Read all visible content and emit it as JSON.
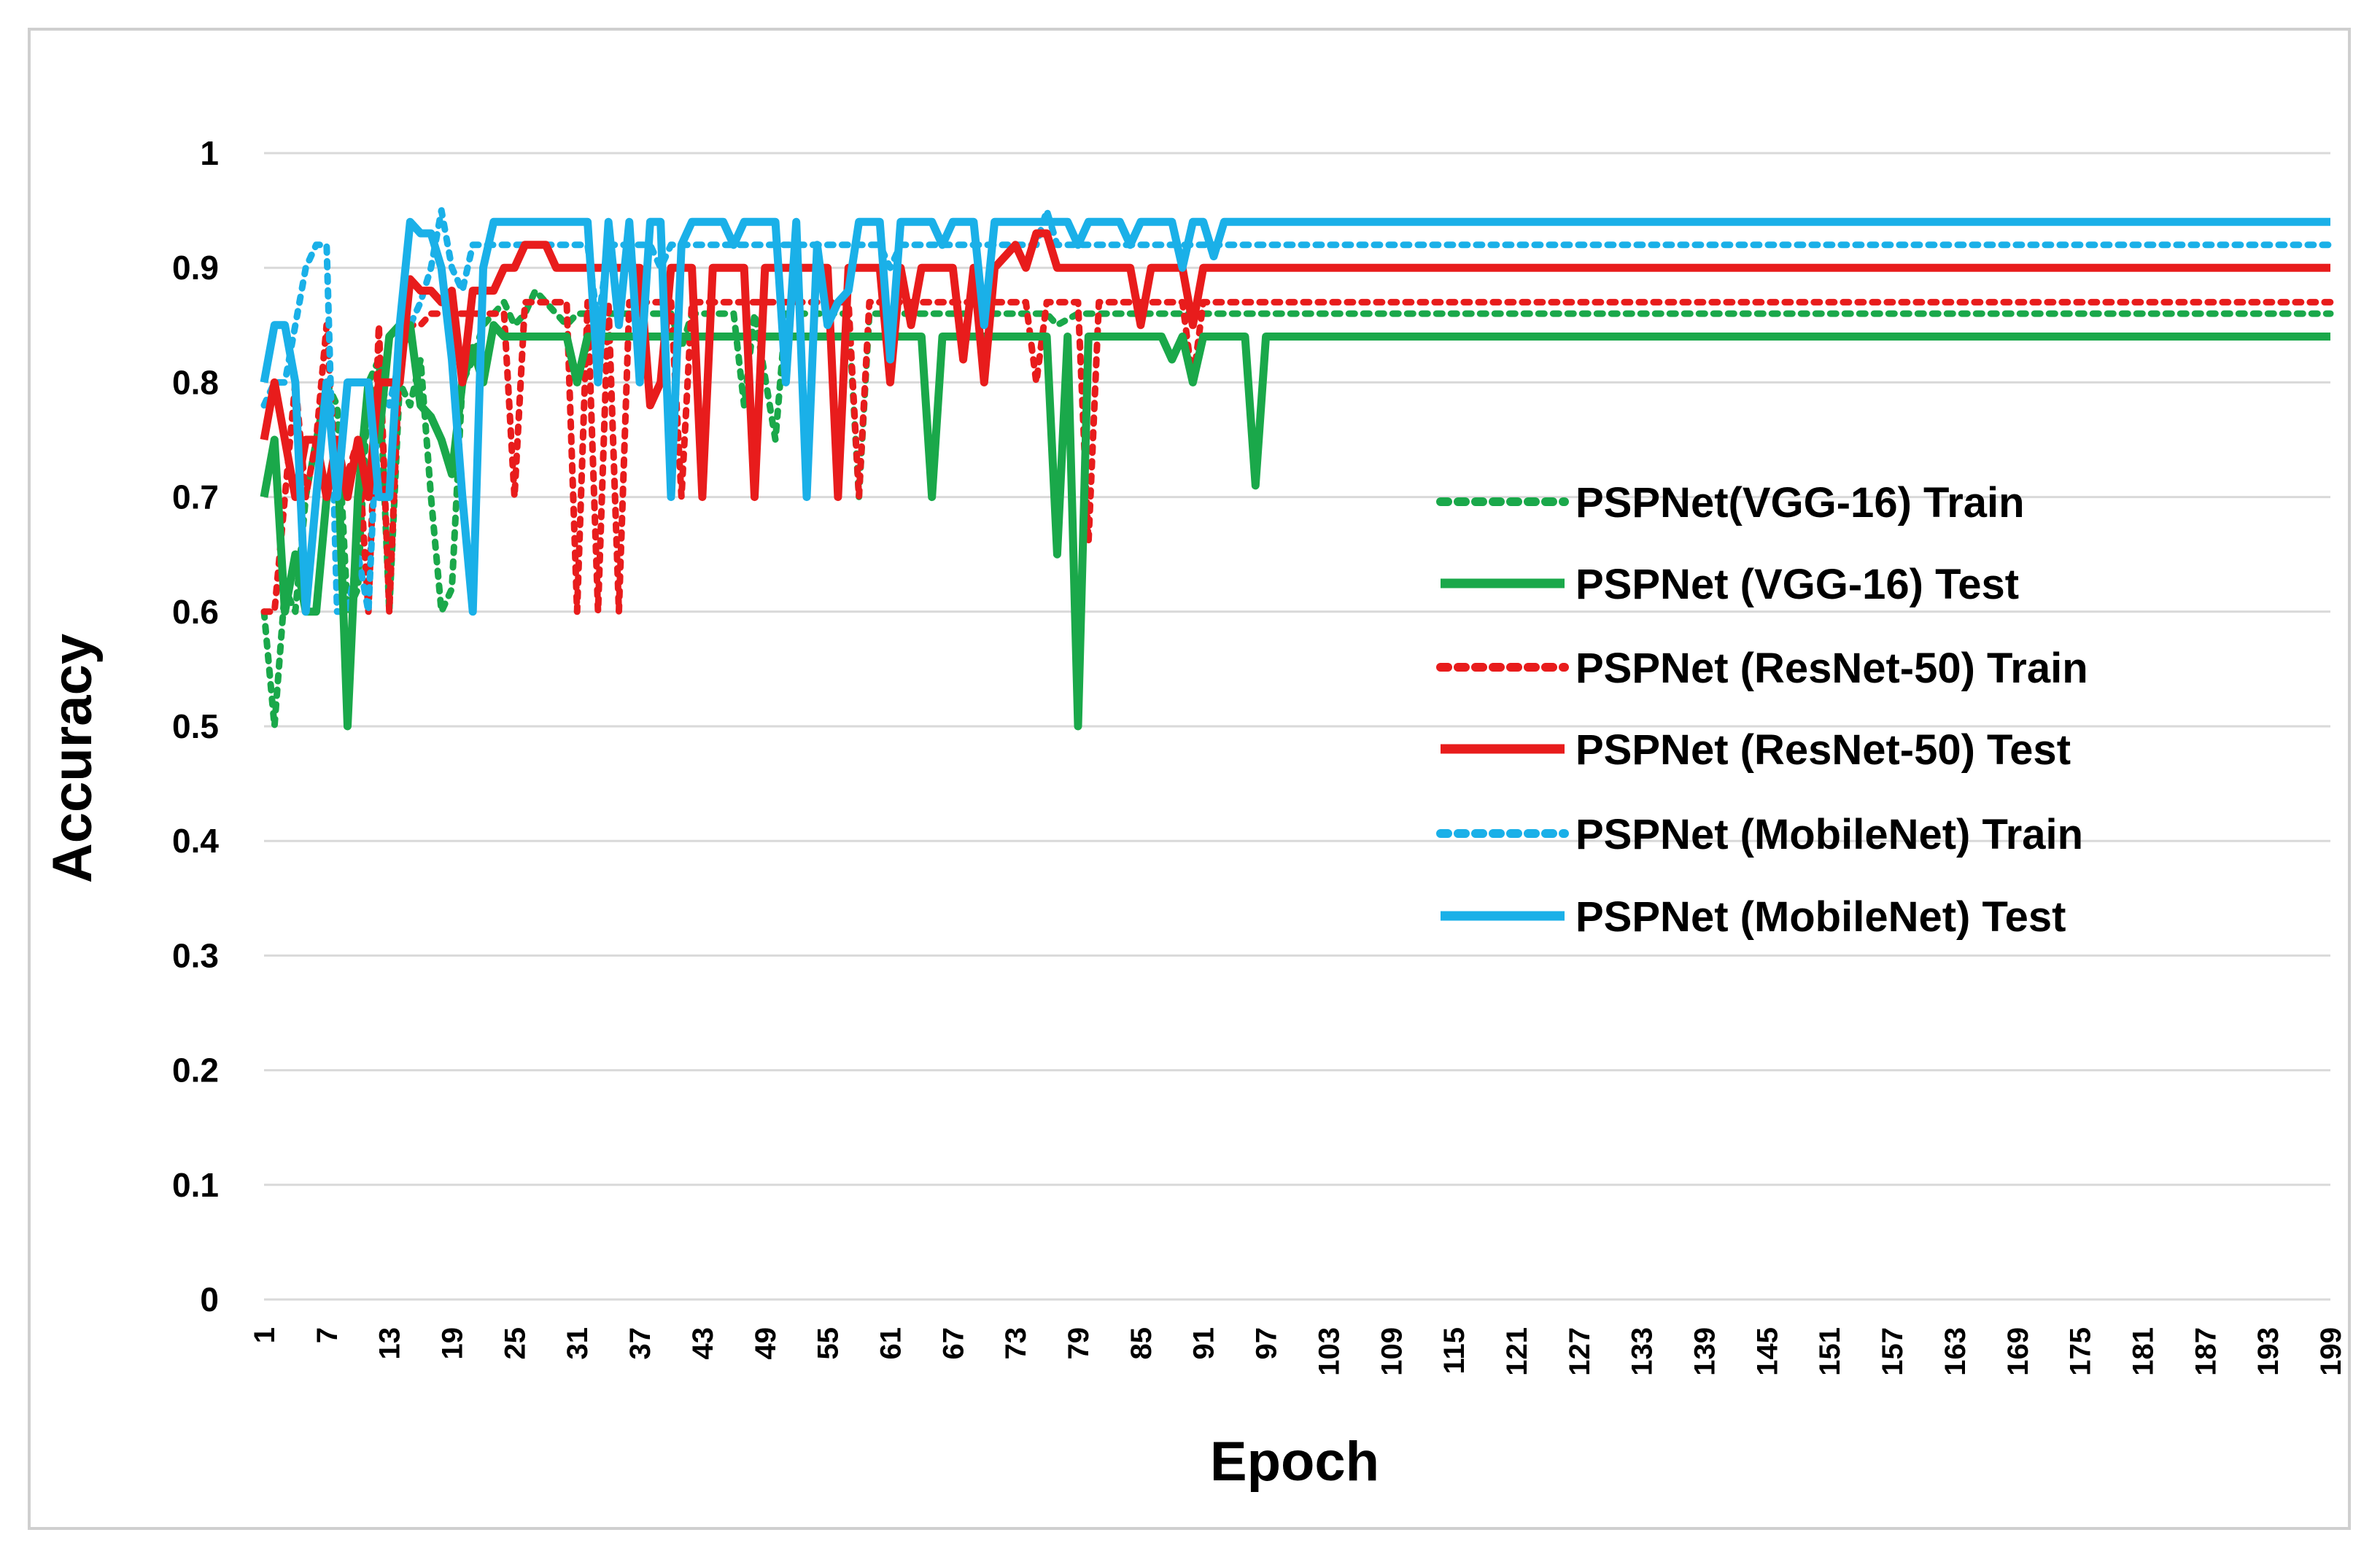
{
  "chart_data": {
    "type": "line",
    "title": "",
    "xlabel": "Epoch",
    "ylabel": "Accuracy",
    "xlim": [
      1,
      199
    ],
    "ylim": [
      0,
      1
    ],
    "x_tick_labels": [
      "1",
      "7",
      "13",
      "19",
      "25",
      "31",
      "37",
      "43",
      "49",
      "55",
      "61",
      "67",
      "73",
      "79",
      "85",
      "91",
      "97",
      "103",
      "109",
      "115",
      "121",
      "127",
      "133",
      "139",
      "145",
      "151",
      "157",
      "163",
      "169",
      "175",
      "181",
      "187",
      "193",
      "199"
    ],
    "y_tick_labels": [
      "0",
      "0.1",
      "0.2",
      "0.3",
      "0.4",
      "0.5",
      "0.6",
      "0.7",
      "0.8",
      "0.9",
      "1"
    ],
    "legend_position": "right-center",
    "series": [
      {
        "name": "PSPNet(VGG-16) Train",
        "color": "#1aa84a",
        "style": "dotted",
        "points": [
          [
            1,
            0.6
          ],
          [
            2,
            0.5
          ],
          [
            3,
            0.62
          ],
          [
            4,
            0.6
          ],
          [
            5,
            0.7
          ],
          [
            6,
            0.75
          ],
          [
            7,
            0.8
          ],
          [
            8,
            0.78
          ],
          [
            9,
            0.6
          ],
          [
            10,
            0.62
          ],
          [
            11,
            0.8
          ],
          [
            12,
            0.82
          ],
          [
            13,
            0.6
          ],
          [
            14,
            0.8
          ],
          [
            15,
            0.78
          ],
          [
            16,
            0.82
          ],
          [
            17,
            0.7
          ],
          [
            18,
            0.6
          ],
          [
            19,
            0.62
          ],
          [
            20,
            0.8
          ],
          [
            21,
            0.82
          ],
          [
            22,
            0.85
          ],
          [
            23,
            0.86
          ],
          [
            24,
            0.87
          ],
          [
            25,
            0.85
          ],
          [
            26,
            0.86
          ],
          [
            27,
            0.88
          ],
          [
            28,
            0.87
          ],
          [
            29,
            0.86
          ],
          [
            30,
            0.85
          ],
          [
            31,
            0.86
          ],
          [
            32,
            0.86
          ],
          [
            33,
            0.86
          ],
          [
            34,
            0.86
          ],
          [
            35,
            0.86
          ],
          [
            40,
            0.86
          ],
          [
            41,
            0.83
          ],
          [
            42,
            0.86
          ],
          [
            46,
            0.86
          ],
          [
            47,
            0.78
          ],
          [
            48,
            0.86
          ],
          [
            50,
            0.75
          ],
          [
            51,
            0.86
          ],
          [
            57,
            0.86
          ],
          [
            58,
            0.7
          ],
          [
            59,
            0.86
          ],
          [
            70,
            0.86
          ],
          [
            76,
            0.86
          ],
          [
            77,
            0.85
          ],
          [
            79,
            0.86
          ],
          [
            100,
            0.86
          ],
          [
            199,
            0.86
          ]
        ]
      },
      {
        "name": "PSPNet (VGG-16) Test",
        "color": "#1aa84a",
        "style": "solid",
        "points": [
          [
            1,
            0.7
          ],
          [
            2,
            0.75
          ],
          [
            3,
            0.6
          ],
          [
            4,
            0.65
          ],
          [
            5,
            0.6
          ],
          [
            6,
            0.6
          ],
          [
            7,
            0.7
          ],
          [
            8,
            0.75
          ],
          [
            9,
            0.5
          ],
          [
            10,
            0.7
          ],
          [
            11,
            0.8
          ],
          [
            12,
            0.75
          ],
          [
            13,
            0.84
          ],
          [
            14,
            0.85
          ],
          [
            15,
            0.85
          ],
          [
            16,
            0.78
          ],
          [
            17,
            0.77
          ],
          [
            18,
            0.75
          ],
          [
            19,
            0.72
          ],
          [
            20,
            0.8
          ],
          [
            21,
            0.83
          ],
          [
            22,
            0.8
          ],
          [
            23,
            0.85
          ],
          [
            24,
            0.84
          ],
          [
            25,
            0.84
          ],
          [
            30,
            0.84
          ],
          [
            31,
            0.8
          ],
          [
            32,
            0.84
          ],
          [
            64,
            0.84
          ],
          [
            65,
            0.7
          ],
          [
            66,
            0.84
          ],
          [
            76,
            0.84
          ],
          [
            77,
            0.65
          ],
          [
            78,
            0.84
          ],
          [
            79,
            0.5
          ],
          [
            80,
            0.84
          ],
          [
            87,
            0.84
          ],
          [
            88,
            0.82
          ],
          [
            89,
            0.84
          ],
          [
            90,
            0.8
          ],
          [
            91,
            0.84
          ],
          [
            95,
            0.84
          ],
          [
            96,
            0.71
          ],
          [
            97,
            0.84
          ],
          [
            199,
            0.84
          ]
        ]
      },
      {
        "name": "PSPNet (ResNet-50) Train",
        "color": "#e81c1c",
        "style": "dotted",
        "points": [
          [
            1,
            0.6
          ],
          [
            2,
            0.6
          ],
          [
            3,
            0.7
          ],
          [
            4,
            0.8
          ],
          [
            5,
            0.7
          ],
          [
            6,
            0.75
          ],
          [
            7,
            0.85
          ],
          [
            8,
            0.7
          ],
          [
            9,
            0.72
          ],
          [
            10,
            0.75
          ],
          [
            11,
            0.6
          ],
          [
            12,
            0.85
          ],
          [
            13,
            0.6
          ],
          [
            14,
            0.82
          ],
          [
            15,
            0.85
          ],
          [
            16,
            0.85
          ],
          [
            17,
            0.86
          ],
          [
            18,
            0.86
          ],
          [
            24,
            0.86
          ],
          [
            25,
            0.7
          ],
          [
            26,
            0.87
          ],
          [
            30,
            0.87
          ],
          [
            31,
            0.6
          ],
          [
            32,
            0.87
          ],
          [
            33,
            0.6
          ],
          [
            34,
            0.87
          ],
          [
            35,
            0.6
          ],
          [
            36,
            0.87
          ],
          [
            40,
            0.87
          ],
          [
            41,
            0.7
          ],
          [
            42,
            0.87
          ],
          [
            57,
            0.87
          ],
          [
            58,
            0.7
          ],
          [
            59,
            0.87
          ],
          [
            74,
            0.87
          ],
          [
            75,
            0.8
          ],
          [
            76,
            0.87
          ],
          [
            79,
            0.87
          ],
          [
            80,
            0.66
          ],
          [
            81,
            0.87
          ],
          [
            89,
            0.87
          ],
          [
            90,
            0.8
          ],
          [
            91,
            0.87
          ],
          [
            199,
            0.87
          ]
        ]
      },
      {
        "name": "PSPNet (ResNet-50) Test",
        "color": "#e81c1c",
        "style": "solid",
        "points": [
          [
            1,
            0.75
          ],
          [
            2,
            0.8
          ],
          [
            3,
            0.75
          ],
          [
            4,
            0.7
          ],
          [
            5,
            0.75
          ],
          [
            6,
            0.75
          ],
          [
            7,
            0.7
          ],
          [
            8,
            0.75
          ],
          [
            9,
            0.7
          ],
          [
            10,
            0.75
          ],
          [
            11,
            0.7
          ],
          [
            12,
            0.8
          ],
          [
            13,
            0.8
          ],
          [
            14,
            0.8
          ],
          [
            15,
            0.89
          ],
          [
            16,
            0.88
          ],
          [
            17,
            0.88
          ],
          [
            18,
            0.87
          ],
          [
            19,
            0.88
          ],
          [
            20,
            0.8
          ],
          [
            21,
            0.88
          ],
          [
            22,
            0.88
          ],
          [
            23,
            0.88
          ],
          [
            24,
            0.9
          ],
          [
            25,
            0.9
          ],
          [
            26,
            0.92
          ],
          [
            27,
            0.92
          ],
          [
            28,
            0.92
          ],
          [
            29,
            0.9
          ],
          [
            36,
            0.9
          ],
          [
            37,
            0.9
          ],
          [
            38,
            0.78
          ],
          [
            39,
            0.8
          ],
          [
            40,
            0.9
          ],
          [
            41,
            0.9
          ],
          [
            42,
            0.9
          ],
          [
            43,
            0.7
          ],
          [
            44,
            0.9
          ],
          [
            47,
            0.9
          ],
          [
            48,
            0.7
          ],
          [
            49,
            0.9
          ],
          [
            55,
            0.9
          ],
          [
            56,
            0.7
          ],
          [
            57,
            0.9
          ],
          [
            60,
            0.9
          ],
          [
            61,
            0.8
          ],
          [
            62,
            0.9
          ],
          [
            63,
            0.85
          ],
          [
            64,
            0.9
          ],
          [
            67,
            0.9
          ],
          [
            68,
            0.82
          ],
          [
            69,
            0.9
          ],
          [
            70,
            0.8
          ],
          [
            71,
            0.9
          ],
          [
            73,
            0.92
          ],
          [
            74,
            0.9
          ],
          [
            75,
            0.93
          ],
          [
            76,
            0.93
          ],
          [
            77,
            0.9
          ],
          [
            84,
            0.9
          ],
          [
            85,
            0.85
          ],
          [
            86,
            0.9
          ],
          [
            89,
            0.9
          ],
          [
            90,
            0.85
          ],
          [
            91,
            0.9
          ],
          [
            199,
            0.9
          ]
        ]
      },
      {
        "name": "PSPNet (MobileNet) Train",
        "color": "#1ab0e8",
        "style": "dotted",
        "points": [
          [
            1,
            0.78
          ],
          [
            2,
            0.8
          ],
          [
            3,
            0.8
          ],
          [
            4,
            0.85
          ],
          [
            5,
            0.9
          ],
          [
            6,
            0.92
          ],
          [
            7,
            0.92
          ],
          [
            8,
            0.6
          ],
          [
            9,
            0.6
          ],
          [
            10,
            0.65
          ],
          [
            11,
            0.6
          ],
          [
            12,
            0.8
          ],
          [
            13,
            0.78
          ],
          [
            14,
            0.82
          ],
          [
            15,
            0.85
          ],
          [
            16,
            0.87
          ],
          [
            17,
            0.9
          ],
          [
            18,
            0.95
          ],
          [
            19,
            0.9
          ],
          [
            20,
            0.88
          ],
          [
            21,
            0.92
          ],
          [
            22,
            0.92
          ],
          [
            28,
            0.92
          ],
          [
            32,
            0.92
          ],
          [
            33,
            0.85
          ],
          [
            34,
            0.92
          ],
          [
            38,
            0.92
          ],
          [
            39,
            0.9
          ],
          [
            40,
            0.92
          ],
          [
            60,
            0.92
          ],
          [
            61,
            0.9
          ],
          [
            62,
            0.92
          ],
          [
            75,
            0.92
          ],
          [
            76,
            0.95
          ],
          [
            77,
            0.92
          ],
          [
            199,
            0.92
          ]
        ]
      },
      {
        "name": "PSPNet (MobileNet) Test",
        "color": "#1ab0e8",
        "style": "solid",
        "points": [
          [
            1,
            0.8
          ],
          [
            2,
            0.85
          ],
          [
            3,
            0.85
          ],
          [
            4,
            0.8
          ],
          [
            5,
            0.6
          ],
          [
            6,
            0.7
          ],
          [
            7,
            0.8
          ],
          [
            8,
            0.7
          ],
          [
            9,
            0.8
          ],
          [
            10,
            0.8
          ],
          [
            11,
            0.8
          ],
          [
            12,
            0.7
          ],
          [
            13,
            0.7
          ],
          [
            14,
            0.85
          ],
          [
            15,
            0.94
          ],
          [
            16,
            0.93
          ],
          [
            17,
            0.93
          ],
          [
            18,
            0.9
          ],
          [
            19,
            0.82
          ],
          [
            20,
            0.7
          ],
          [
            21,
            0.6
          ],
          [
            22,
            0.9
          ],
          [
            23,
            0.94
          ],
          [
            24,
            0.94
          ],
          [
            32,
            0.94
          ],
          [
            33,
            0.8
          ],
          [
            34,
            0.94
          ],
          [
            35,
            0.85
          ],
          [
            36,
            0.94
          ],
          [
            37,
            0.8
          ],
          [
            38,
            0.94
          ],
          [
            39,
            0.94
          ],
          [
            40,
            0.7
          ],
          [
            41,
            0.92
          ],
          [
            42,
            0.94
          ],
          [
            45,
            0.94
          ],
          [
            46,
            0.92
          ],
          [
            47,
            0.94
          ],
          [
            50,
            0.94
          ],
          [
            51,
            0.8
          ],
          [
            52,
            0.94
          ],
          [
            53,
            0.7
          ],
          [
            54,
            0.92
          ],
          [
            55,
            0.85
          ],
          [
            56,
            0.87
          ],
          [
            57,
            0.88
          ],
          [
            58,
            0.94
          ],
          [
            60,
            0.94
          ],
          [
            61,
            0.82
          ],
          [
            62,
            0.94
          ],
          [
            65,
            0.94
          ],
          [
            66,
            0.92
          ],
          [
            67,
            0.94
          ],
          [
            69,
            0.94
          ],
          [
            70,
            0.85
          ],
          [
            71,
            0.94
          ],
          [
            78,
            0.94
          ],
          [
            79,
            0.92
          ],
          [
            80,
            0.94
          ],
          [
            83,
            0.94
          ],
          [
            84,
            0.92
          ],
          [
            85,
            0.94
          ],
          [
            88,
            0.94
          ],
          [
            89,
            0.9
          ],
          [
            90,
            0.94
          ],
          [
            91,
            0.94
          ],
          [
            92,
            0.91
          ],
          [
            93,
            0.94
          ],
          [
            199,
            0.94
          ]
        ]
      }
    ]
  }
}
